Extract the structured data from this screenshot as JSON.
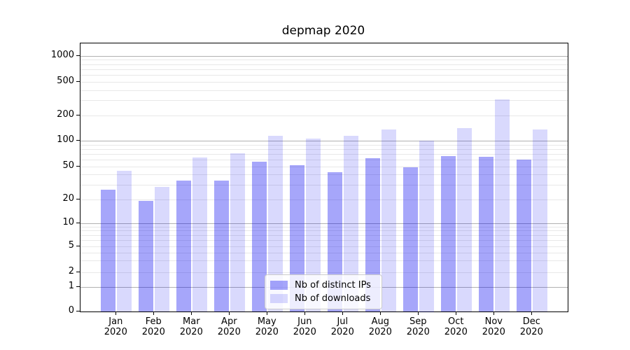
{
  "chart_data": {
    "type": "bar",
    "title": "depmap 2020",
    "categories": [
      "Jan",
      "Feb",
      "Mar",
      "Apr",
      "May",
      "Jun",
      "Jul",
      "Aug",
      "Sep",
      "Oct",
      "Nov",
      "Dec"
    ],
    "x_tick_year": "2020",
    "series": [
      {
        "name": "Nb of distinct IPs",
        "color": "rgba(0,0,240,0.35)",
        "values": [
          26,
          19,
          34,
          34,
          57,
          52,
          43,
          63,
          49,
          66,
          65,
          60
        ]
      },
      {
        "name": "Nb of downloads",
        "color": "rgba(0,0,240,0.15)",
        "values": [
          44,
          28,
          64,
          72,
          114,
          106,
          115,
          135,
          100,
          141,
          310,
          136
        ]
      }
    ],
    "y_axis": {
      "scale": "symlog",
      "tick_values": [
        0,
        1,
        2,
        5,
        10,
        20,
        50,
        100,
        200,
        500,
        1000
      ],
      "major_gridline_values": [
        1,
        10,
        100,
        1000
      ],
      "minor_gridline_values": [
        2,
        3,
        4,
        5,
        6,
        7,
        8,
        9,
        20,
        30,
        40,
        50,
        60,
        70,
        80,
        90,
        200,
        300,
        400,
        500,
        600,
        700,
        800,
        900
      ]
    },
    "legend": {
      "location": "lower center",
      "entries": [
        "Nb of distinct IPs",
        "Nb of downloads"
      ]
    },
    "colors": {
      "major_grid": "#b0b0b0",
      "minor_grid": "#e8e8e8",
      "spine": "#000000",
      "text": "#000000",
      "legend_border": "#cccccc",
      "legend_bg": "rgba(255,255,255,0.8)"
    }
  }
}
